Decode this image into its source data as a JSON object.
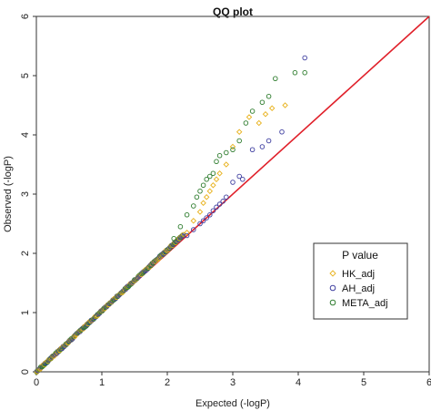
{
  "chart_data": {
    "type": "scatter",
    "title": "QQ plot",
    "xlabel": "Expected (-logP)",
    "ylabel": "Observed (-logP)",
    "xlim": [
      0,
      6
    ],
    "ylim": [
      0,
      6
    ],
    "x_ticks": [
      "0",
      "1",
      "2",
      "3",
      "4",
      "5",
      "6"
    ],
    "y_ticks": [
      "0",
      "1",
      "2",
      "3",
      "4",
      "5",
      "6"
    ],
    "reference_line": {
      "from": [
        0,
        0
      ],
      "to": [
        6,
        6
      ],
      "color": "#e0202a"
    },
    "legend": {
      "title": "P value",
      "placement": "right"
    },
    "series": [
      {
        "name": "HK_adj",
        "color": "#e8b21e",
        "points": [
          [
            2.3,
            2.35
          ],
          [
            2.4,
            2.55
          ],
          [
            2.5,
            2.7
          ],
          [
            2.55,
            2.85
          ],
          [
            2.6,
            2.95
          ],
          [
            2.65,
            3.05
          ],
          [
            2.7,
            3.15
          ],
          [
            2.75,
            3.25
          ],
          [
            2.8,
            3.35
          ],
          [
            2.9,
            3.5
          ],
          [
            3.0,
            3.8
          ],
          [
            3.1,
            4.05
          ],
          [
            3.25,
            4.3
          ],
          [
            3.4,
            4.2
          ],
          [
            3.5,
            4.35
          ],
          [
            3.6,
            4.45
          ],
          [
            3.8,
            4.5
          ]
        ]
      },
      {
        "name": "AH_adj",
        "color": "#3f3fa0",
        "points": [
          [
            2.3,
            2.3
          ],
          [
            2.4,
            2.4
          ],
          [
            2.5,
            2.5
          ],
          [
            2.55,
            2.55
          ],
          [
            2.6,
            2.6
          ],
          [
            2.65,
            2.65
          ],
          [
            2.7,
            2.72
          ],
          [
            2.75,
            2.78
          ],
          [
            2.8,
            2.83
          ],
          [
            2.85,
            2.88
          ],
          [
            2.9,
            2.95
          ],
          [
            3.0,
            3.2
          ],
          [
            3.1,
            3.3
          ],
          [
            3.15,
            3.25
          ],
          [
            3.3,
            3.75
          ],
          [
            3.45,
            3.8
          ],
          [
            3.55,
            3.9
          ],
          [
            3.75,
            4.05
          ],
          [
            4.1,
            5.3
          ]
        ]
      },
      {
        "name": "META_adj",
        "color": "#2f7d2f",
        "points": [
          [
            2.1,
            2.25
          ],
          [
            2.2,
            2.45
          ],
          [
            2.3,
            2.65
          ],
          [
            2.4,
            2.8
          ],
          [
            2.45,
            2.95
          ],
          [
            2.5,
            3.05
          ],
          [
            2.55,
            3.15
          ],
          [
            2.6,
            3.25
          ],
          [
            2.65,
            3.3
          ],
          [
            2.7,
            3.35
          ],
          [
            2.75,
            3.55
          ],
          [
            2.8,
            3.65
          ],
          [
            2.9,
            3.7
          ],
          [
            3.0,
            3.75
          ],
          [
            3.1,
            3.9
          ],
          [
            3.2,
            4.2
          ],
          [
            3.3,
            4.4
          ],
          [
            3.45,
            4.55
          ],
          [
            3.55,
            4.65
          ],
          [
            3.65,
            4.95
          ],
          [
            3.95,
            5.05
          ],
          [
            4.1,
            5.05
          ]
        ]
      }
    ]
  }
}
